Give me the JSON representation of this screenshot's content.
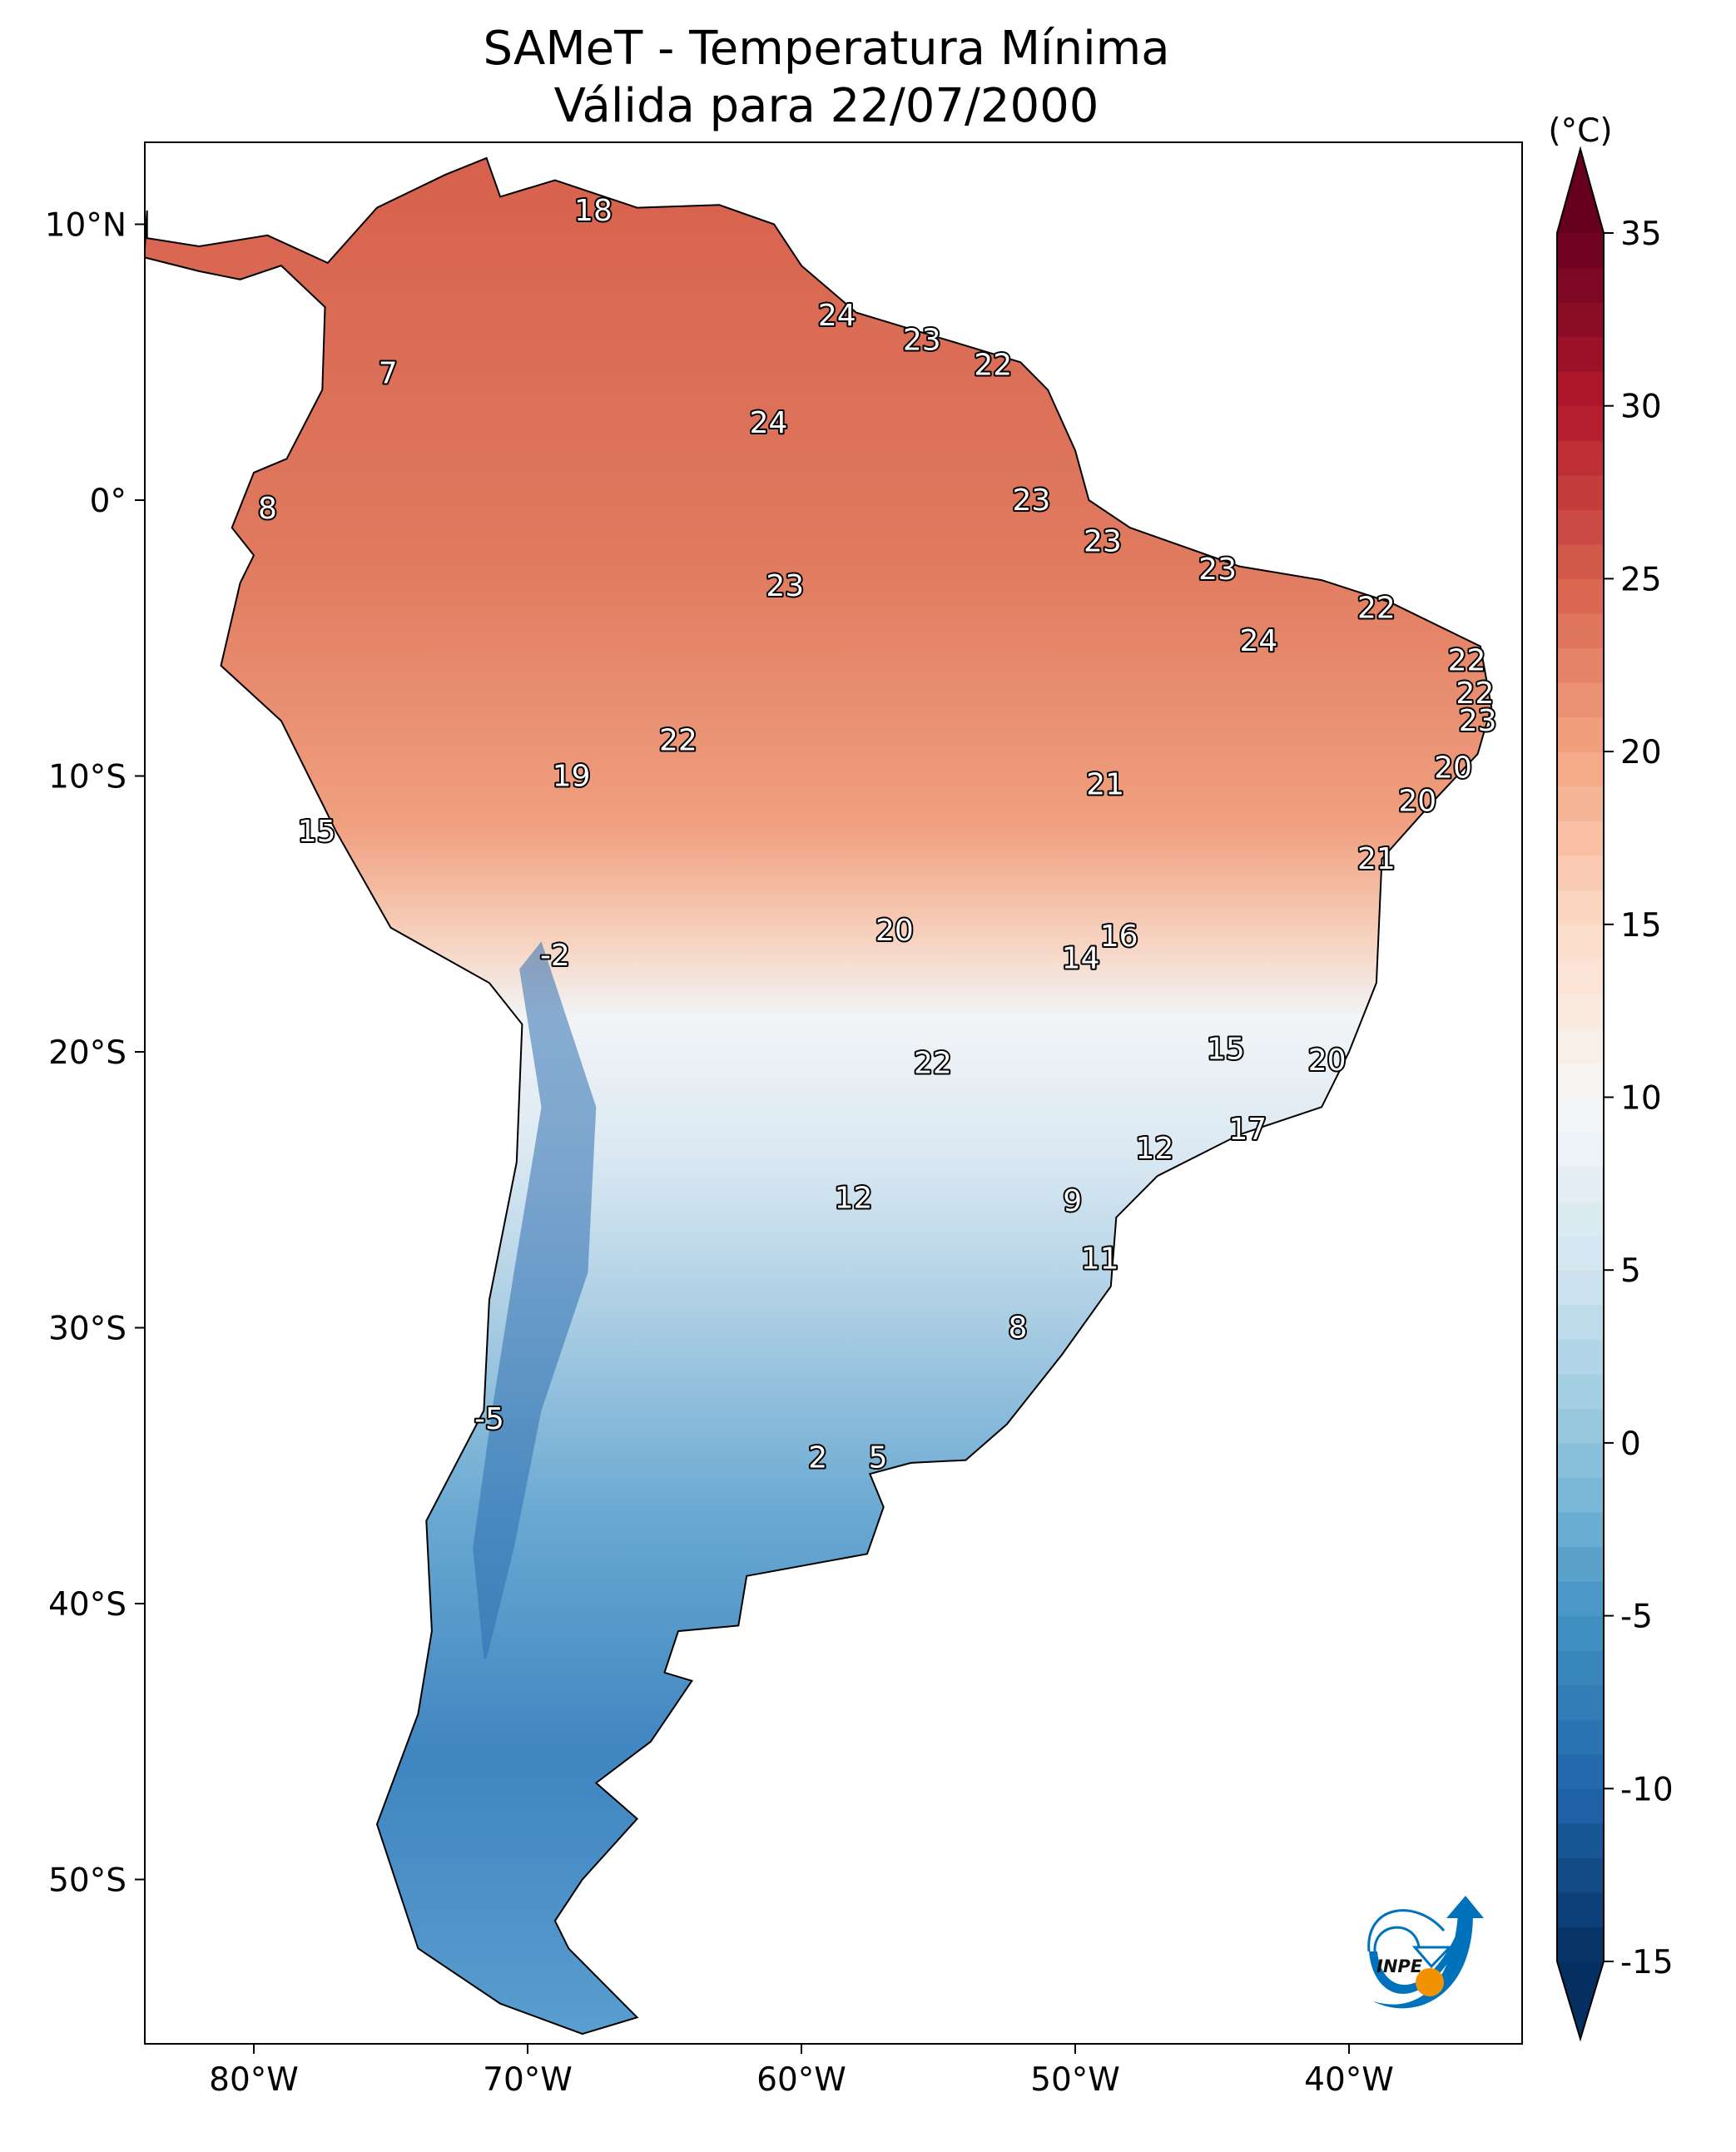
{
  "title": {
    "line1": "SAMeT - Temperatura Mínima",
    "line2": "Válida para 22/07/2000"
  },
  "chart_data": {
    "type": "heatmap",
    "title": "SAMeT - Temperatura Mínima Válida para 22/07/2000",
    "extent": {
      "lon": [
        -84,
        -33.7
      ],
      "lat": [
        -56,
        13
      ]
    },
    "x_ticks": [
      {
        "value": -80,
        "label": "80°W"
      },
      {
        "value": -70,
        "label": "70°W"
      },
      {
        "value": -60,
        "label": "60°W"
      },
      {
        "value": -50,
        "label": "50°W"
      },
      {
        "value": -40,
        "label": "40°W"
      }
    ],
    "y_ticks": [
      {
        "value": 10,
        "label": "10°N"
      },
      {
        "value": 0,
        "label": "0°"
      },
      {
        "value": -10,
        "label": "10°S"
      },
      {
        "value": -20,
        "label": "20°S"
      },
      {
        "value": -30,
        "label": "30°S"
      },
      {
        "value": -40,
        "label": "40°S"
      },
      {
        "value": -50,
        "label": "50°S"
      }
    ],
    "colorbar": {
      "unit": "(°C)",
      "range": [
        -15,
        35
      ],
      "extend": "both",
      "colormap": "RdBu_r",
      "ticks": [
        "35",
        "30",
        "25",
        "20",
        "15",
        "10",
        "5",
        "0",
        "-5",
        "-10",
        "-15"
      ],
      "tick_values": [
        35,
        30,
        25,
        20,
        15,
        10,
        5,
        0,
        -5,
        -10,
        -15
      ],
      "colors": [
        "#053061",
        "#2166ac",
        "#4393c3",
        "#92c5de",
        "#d1e5f0",
        "#f7f7f7",
        "#fddbc7",
        "#f4a582",
        "#d6604d",
        "#b2182b",
        "#67001f"
      ]
    },
    "point_labels": [
      {
        "text": "18",
        "lon": -67.6,
        "lat": 10.5
      },
      {
        "text": "24",
        "lon": -58.7,
        "lat": 6.7
      },
      {
        "text": "23",
        "lon": -55.6,
        "lat": 5.8
      },
      {
        "text": "22",
        "lon": -53.0,
        "lat": 4.9
      },
      {
        "text": "7",
        "lon": -75.1,
        "lat": 4.6
      },
      {
        "text": "24",
        "lon": -61.2,
        "lat": 2.8
      },
      {
        "text": "8",
        "lon": -79.5,
        "lat": -0.3
      },
      {
        "text": "23",
        "lon": -51.6,
        "lat": 0.0
      },
      {
        "text": "23",
        "lon": -49.0,
        "lat": -1.5
      },
      {
        "text": "23",
        "lon": -44.8,
        "lat": -2.5
      },
      {
        "text": "23",
        "lon": -60.6,
        "lat": -3.1
      },
      {
        "text": "22",
        "lon": -39.0,
        "lat": -3.9
      },
      {
        "text": "24",
        "lon": -43.3,
        "lat": -5.1
      },
      {
        "text": "22",
        "lon": -35.7,
        "lat": -5.8
      },
      {
        "text": "22",
        "lon": -35.4,
        "lat": -7.0
      },
      {
        "text": "23",
        "lon": -35.3,
        "lat": -8.0
      },
      {
        "text": "22",
        "lon": -64.5,
        "lat": -8.7
      },
      {
        "text": "20",
        "lon": -36.2,
        "lat": -9.7
      },
      {
        "text": "19",
        "lon": -68.4,
        "lat": -10.0
      },
      {
        "text": "21",
        "lon": -48.9,
        "lat": -10.3
      },
      {
        "text": "20",
        "lon": -37.5,
        "lat": -10.9
      },
      {
        "text": "15",
        "lon": -77.7,
        "lat": -12.0
      },
      {
        "text": "21",
        "lon": -39.0,
        "lat": -13.0
      },
      {
        "text": "20",
        "lon": -56.6,
        "lat": -15.6
      },
      {
        "text": "16",
        "lon": -48.4,
        "lat": -15.8
      },
      {
        "text": "14",
        "lon": -49.8,
        "lat": -16.6
      },
      {
        "text": "-2",
        "lon": -69.0,
        "lat": -16.5
      },
      {
        "text": "22",
        "lon": -55.2,
        "lat": -20.4
      },
      {
        "text": "15",
        "lon": -44.5,
        "lat": -19.9
      },
      {
        "text": "20",
        "lon": -40.8,
        "lat": -20.3
      },
      {
        "text": "17",
        "lon": -43.7,
        "lat": -22.8
      },
      {
        "text": "12",
        "lon": -47.1,
        "lat": -23.5
      },
      {
        "text": "12",
        "lon": -58.1,
        "lat": -25.3
      },
      {
        "text": "9",
        "lon": -50.1,
        "lat": -25.4
      },
      {
        "text": "11",
        "lon": -49.1,
        "lat": -27.5
      },
      {
        "text": "8",
        "lon": -52.1,
        "lat": -30.0
      },
      {
        "text": "-5",
        "lon": -71.4,
        "lat": -33.3
      },
      {
        "text": "2",
        "lon": -59.4,
        "lat": -34.7
      },
      {
        "text": "5",
        "lon": -57.2,
        "lat": -34.7
      }
    ]
  },
  "logo": {
    "text": "INPE",
    "colors": {
      "blue": "#0072bb",
      "orange": "#f39200"
    }
  }
}
